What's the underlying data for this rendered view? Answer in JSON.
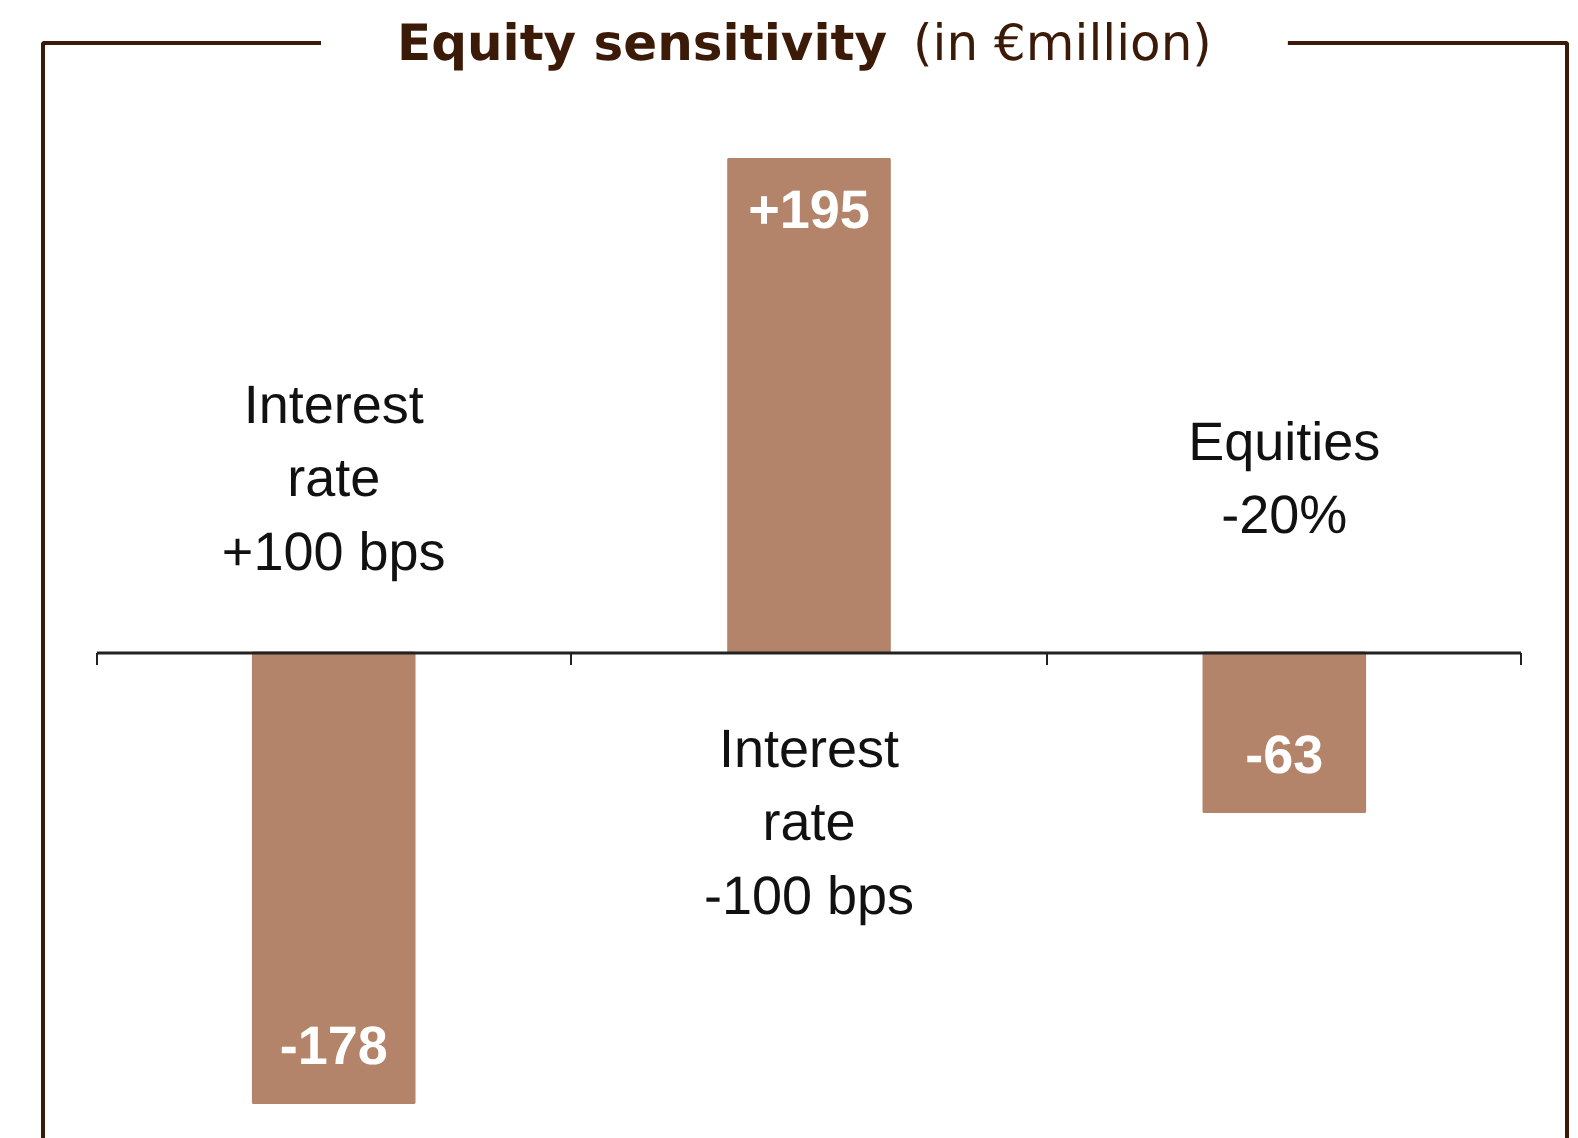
{
  "chart_data": {
    "type": "bar",
    "title": "Equity sensitivity",
    "subtitle": "(in €million)",
    "categories": [
      "Interest rate +100 bps",
      "Interest rate -100 bps",
      "Equities -20%"
    ],
    "values": [
      -178,
      195,
      -63
    ],
    "color": "#b3836a",
    "value_labels": [
      "-178",
      "+195",
      "-63"
    ]
  }
}
